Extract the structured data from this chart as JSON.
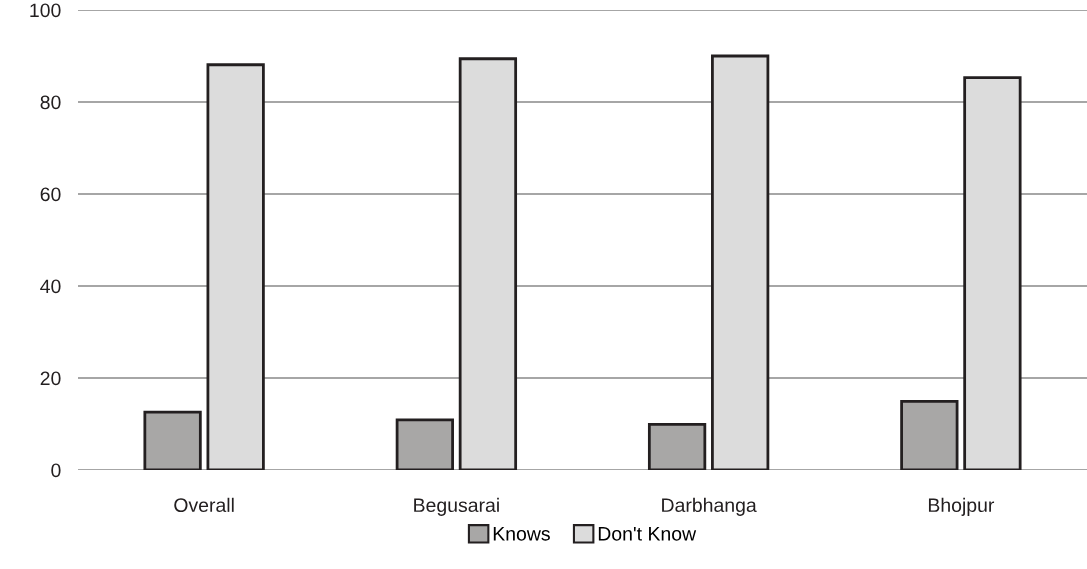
{
  "chart_data": {
    "type": "bar",
    "categories": [
      "Overall",
      "Begusarai",
      "Darbhanga",
      "Bhojpur"
    ],
    "series": [
      {
        "name": "Knows",
        "color": "#a8a7a6",
        "values": [
          12.6,
          10.9,
          9.9,
          14.9
        ]
      },
      {
        "name": "Don't Know",
        "color": "#dcdcdc",
        "values": [
          88.1,
          89.4,
          90.0,
          85.3
        ]
      }
    ],
    "ylim": [
      0,
      100
    ],
    "yticks": [
      0,
      20,
      40,
      60,
      80,
      100
    ],
    "grid": "y",
    "legend": "bottom"
  }
}
